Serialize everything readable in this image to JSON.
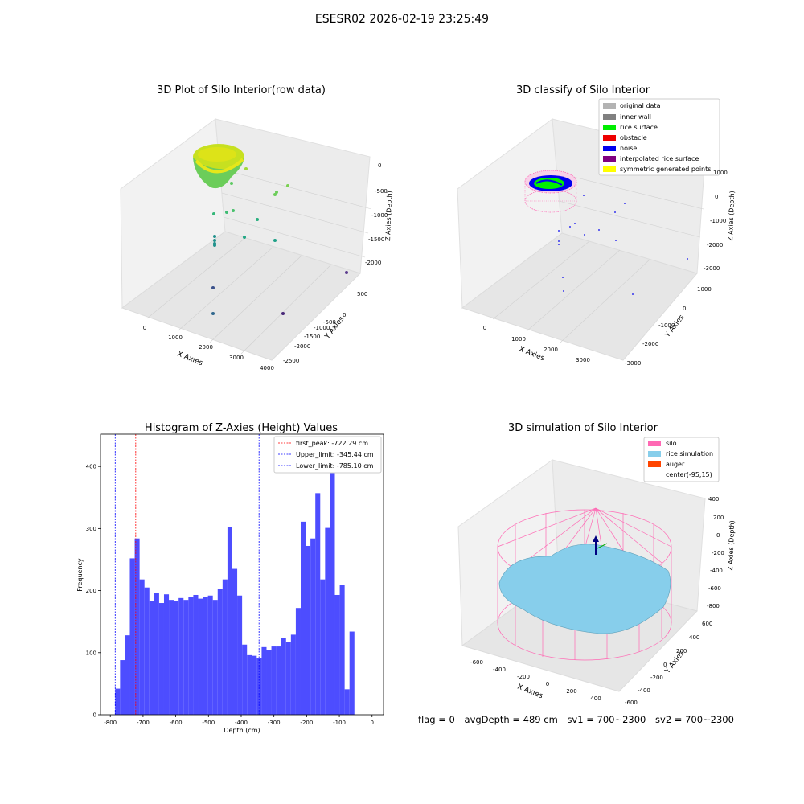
{
  "figure": {
    "suptitle": "ESESR02 2026-02-19 23:25:49",
    "status": {
      "flag": "flag = 0",
      "avg_depth": "avgDepth = 489 cm",
      "sv1": "sv1 = 700~2300",
      "sv2": "sv2 = 700~2300"
    }
  },
  "panels": {
    "raw": {
      "title": "3D Plot of Silo Interior(row data)",
      "xlabel": "X Axies",
      "ylabel": "Y Axies",
      "zlabel": "Z Axies (Depth)",
      "xticks": [
        "0",
        "1000",
        "2000",
        "3000",
        "4000"
      ],
      "yticks": [
        "500",
        "0",
        "-500",
        "-1000",
        "-1500",
        "-2000",
        "-2500"
      ],
      "zticks": [
        "0",
        "-500",
        "-1000",
        "-1500",
        "-2000"
      ]
    },
    "classify": {
      "title": "3D classify of Silo Interior",
      "xlabel": "X Axies",
      "ylabel": "Y Axies",
      "zlabel": "Z Axies (Depth)",
      "xticks": [
        "0",
        "1000",
        "2000",
        "3000"
      ],
      "yticks": [
        "1000",
        "0",
        "-1000",
        "-2000",
        "-3000"
      ],
      "zticks": [
        "1000",
        "0",
        "-1000",
        "-2000",
        "-3000"
      ],
      "legend": [
        {
          "label": "original data",
          "color": "#b3b3b3"
        },
        {
          "label": "inner wall",
          "color": "#808080"
        },
        {
          "label": "rice surface",
          "color": "#00ee00"
        },
        {
          "label": "obstacle",
          "color": "#ee0000"
        },
        {
          "label": "noise",
          "color": "#0000ee"
        },
        {
          "label": "interpolated rice surface",
          "color": "#800080"
        },
        {
          "label": "symmetric generated points",
          "color": "#ffff00"
        }
      ]
    },
    "simulation": {
      "title": "3D simulation of Silo Interior",
      "xlabel": "X Axies",
      "ylabel": "Y Axies",
      "zlabel": "Z Axies (Depth)",
      "xticks": [
        "-600",
        "-400",
        "-200",
        "0",
        "200",
        "400"
      ],
      "yticks": [
        "600",
        "400",
        "200",
        "0",
        "-200",
        "-400",
        "-600"
      ],
      "zticks": [
        "400",
        "200",
        "0",
        "-200",
        "-400",
        "-600",
        "-800"
      ],
      "legend": [
        {
          "label": "silo",
          "color": "#ff69b4"
        },
        {
          "label": "rice simulation",
          "color": "#87ceeb"
        },
        {
          "label": "auger",
          "color": "#ff4500"
        },
        {
          "label": "center(-95,15)",
          "color": "#ffffff"
        }
      ]
    }
  },
  "chart_data": [
    {
      "type": "bar",
      "title": "Histogram of Z-Axies (Height) Values",
      "xlabel": "Depth (cm)",
      "ylabel": "Frequency",
      "xlim": [
        -830,
        35
      ],
      "ylim": [
        0,
        452
      ],
      "xticks": [
        -800,
        -700,
        -600,
        -500,
        -400,
        -300,
        -200,
        -100,
        0
      ],
      "yticks": [
        0,
        100,
        200,
        300,
        400
      ],
      "bar_color": "#4d4dff",
      "bin_width": 14.92,
      "bin_start": -785.1,
      "values": [
        42,
        88,
        128,
        252,
        284,
        218,
        205,
        183,
        196,
        180,
        194,
        185,
        183,
        188,
        185,
        190,
        193,
        187,
        190,
        192,
        185,
        203,
        218,
        303,
        235,
        192,
        113,
        96,
        95,
        91,
        109,
        104,
        110,
        110,
        124,
        117,
        129,
        172,
        311,
        272,
        284,
        357,
        218,
        301,
        405,
        193,
        209,
        41,
        134
      ],
      "vlines": [
        {
          "name": "first_peak: -722.29 cm",
          "x": -722.29,
          "color": "#ff0000"
        },
        {
          "name": "Upper_limit: -345.44 cm",
          "x": -345.44,
          "color": "#0000ff"
        },
        {
          "name": "Lower_limit: -785.10 cm",
          "x": -785.1,
          "color": "#0000ff"
        }
      ],
      "legend_position": "upper right"
    }
  ]
}
